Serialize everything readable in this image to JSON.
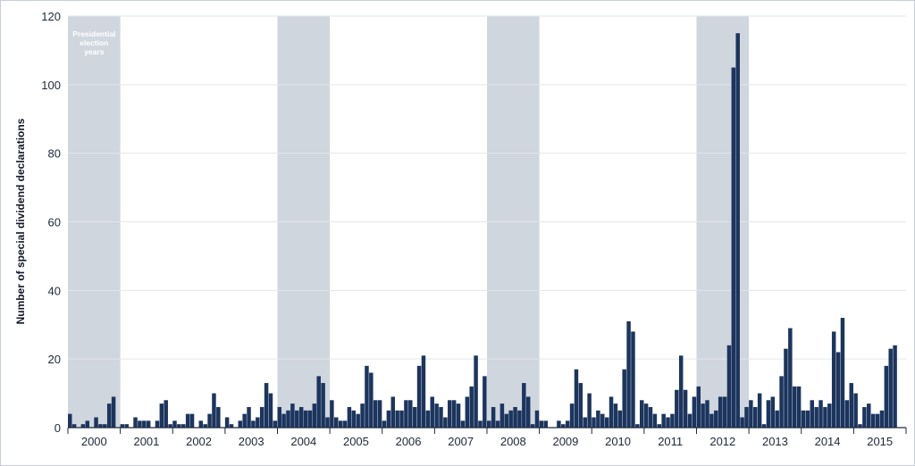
{
  "chart_data": {
    "type": "bar",
    "title": "",
    "xlabel": "",
    "ylabel": "Number of special dividend declarations",
    "ylim": [
      0,
      120
    ],
    "yticks": [
      0,
      20,
      40,
      60,
      80,
      100,
      120
    ],
    "grid": true,
    "bar_color": "#1c355e",
    "shade_color": "#d0d6de",
    "shaded_regions": {
      "label": "Presidential election years",
      "label_lines": [
        "Presidential",
        "election",
        "years"
      ],
      "years": [
        2000,
        2004,
        2008,
        2012
      ]
    },
    "years": [
      "2000",
      "2001",
      "2002",
      "2003",
      "2004",
      "2005",
      "2006",
      "2007",
      "2008",
      "2009",
      "2010",
      "2011",
      "2012",
      "2013",
      "2014",
      "2015"
    ],
    "series": [
      {
        "values": [
          4,
          1,
          0,
          1,
          2,
          0,
          3,
          1,
          1,
          7,
          9,
          0,
          1,
          1,
          0,
          3,
          2,
          2,
          2,
          0,
          2,
          7,
          8,
          1,
          2,
          1,
          1,
          4,
          4,
          0,
          2,
          1,
          4,
          10,
          6,
          0,
          3,
          1,
          0,
          2,
          4,
          6,
          2,
          3,
          6,
          13,
          10,
          2,
          6,
          4,
          5,
          7,
          5,
          6,
          5,
          5,
          7,
          15,
          13,
          3,
          8,
          3,
          2,
          2,
          6,
          5,
          4,
          7,
          18,
          16,
          8,
          8,
          2,
          5,
          9,
          5,
          5,
          8,
          8,
          6,
          18,
          21,
          5,
          9,
          7,
          6,
          3,
          8,
          8,
          7,
          2,
          9,
          12,
          21,
          2,
          15,
          2,
          6,
          2,
          7,
          4,
          5,
          6,
          5,
          13,
          9,
          1,
          5,
          2,
          2,
          0,
          0,
          2,
          1,
          2,
          7,
          17,
          13,
          3,
          10,
          3,
          5,
          4,
          3,
          9,
          7,
          5,
          17,
          31,
          28,
          1,
          8,
          7,
          6,
          4,
          1,
          4,
          3,
          4,
          11,
          21,
          11,
          4,
          9,
          12,
          7,
          8,
          4,
          5,
          9,
          9,
          24,
          105,
          115,
          3,
          6,
          8,
          6,
          10,
          1,
          8,
          9,
          5,
          15,
          23,
          29,
          12,
          12,
          5,
          5,
          8,
          6,
          8,
          6,
          7,
          28,
          22,
          32,
          8,
          13,
          10,
          1,
          6,
          7,
          4,
          4,
          5,
          18,
          23,
          24
        ]
      }
    ]
  }
}
